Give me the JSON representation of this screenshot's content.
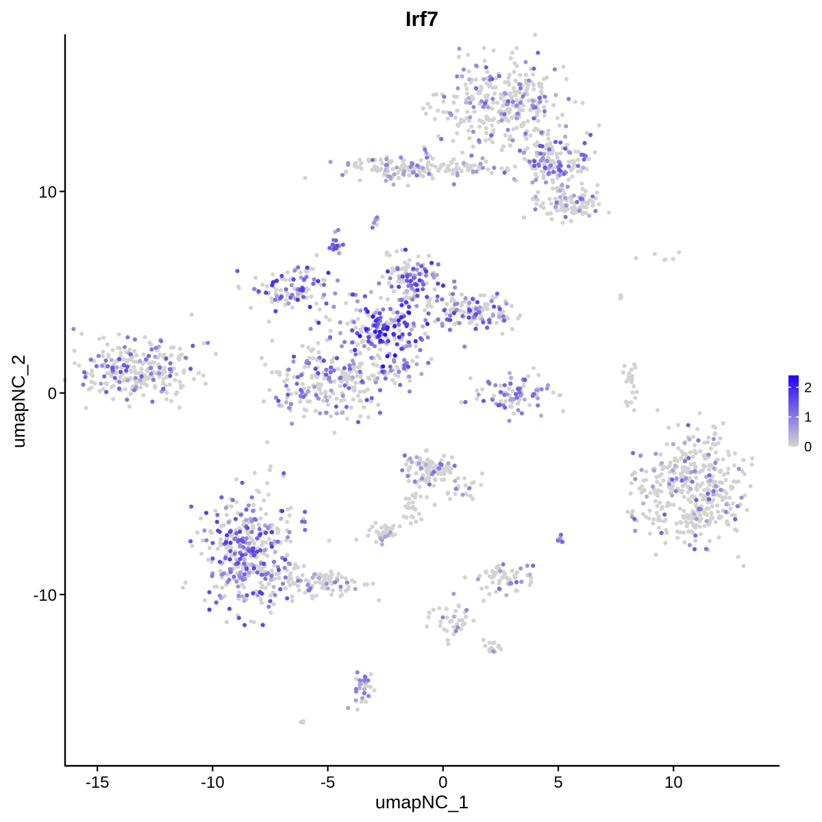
{
  "chart_data": {
    "type": "scatter",
    "title": "Irf7",
    "xlabel": "umapNC_1",
    "ylabel": "umapNC_2",
    "xlim": [
      -16.4,
      14.6
    ],
    "ylim": [
      -18.5,
      17.8
    ],
    "x_ticks": [
      {
        "value": -15,
        "label": "-15"
      },
      {
        "value": -10,
        "label": "-10"
      },
      {
        "value": -5,
        "label": "-5"
      },
      {
        "value": 0,
        "label": "0"
      },
      {
        "value": 5,
        "label": "5"
      },
      {
        "value": 10,
        "label": "10"
      }
    ],
    "y_ticks": [
      {
        "value": -10,
        "label": "-10"
      },
      {
        "value": 0,
        "label": "0"
      },
      {
        "value": 10,
        "label": "10"
      }
    ],
    "color_scale": {
      "low": "#d3d3d3",
      "high": "#2000ff",
      "min": 0,
      "max": 2.4,
      "ticks": [
        {
          "value": 0,
          "label": "0"
        },
        {
          "value": 1,
          "label": "1"
        },
        {
          "value": 2,
          "label": "2"
        }
      ]
    },
    "grid": false,
    "legend_position": "right",
    "clusters": [
      {
        "cx": 2.6,
        "cy": 14.2,
        "sx": 1.4,
        "sy": 1.2,
        "n": 320,
        "expr_frac": 0.22,
        "expr_max": 1.4
      },
      {
        "cx": 4.9,
        "cy": 11.4,
        "sx": 0.75,
        "sy": 0.55,
        "n": 130,
        "expr_frac": 0.35,
        "expr_max": 1.5
      },
      {
        "cx": 5.3,
        "cy": 9.4,
        "sx": 0.7,
        "sy": 0.45,
        "n": 110,
        "expr_frac": 0.15,
        "expr_max": 1.2
      },
      {
        "cx": -2.0,
        "cy": 11.2,
        "sx": 1.2,
        "sy": 0.35,
        "n": 100,
        "expr_frac": 0.2,
        "expr_max": 1.2
      },
      {
        "cx": 0.4,
        "cy": 11.2,
        "sx": 1.0,
        "sy": 0.25,
        "n": 60,
        "expr_frac": 0.15,
        "expr_max": 1.0
      },
      {
        "cx": -2.9,
        "cy": 8.5,
        "sx": 0.1,
        "sy": 0.2,
        "n": 8,
        "expr_frac": 0.6,
        "expr_max": 1.3
      },
      {
        "cx": -4.6,
        "cy": 7.4,
        "sx": 0.15,
        "sy": 0.25,
        "n": 18,
        "expr_frac": 0.8,
        "expr_max": 1.6
      },
      {
        "cx": -6.5,
        "cy": 5.2,
        "sx": 1.0,
        "sy": 0.55,
        "n": 110,
        "expr_frac": 0.4,
        "expr_max": 1.9
      },
      {
        "cx": -2.7,
        "cy": 3.2,
        "sx": 1.1,
        "sy": 0.9,
        "n": 200,
        "expr_frac": 0.55,
        "expr_max": 2.3
      },
      {
        "cx": -1.3,
        "cy": 5.6,
        "sx": 0.55,
        "sy": 0.65,
        "n": 110,
        "expr_frac": 0.55,
        "expr_max": 1.9
      },
      {
        "cx": 1.4,
        "cy": 4.1,
        "sx": 0.9,
        "sy": 0.45,
        "n": 130,
        "expr_frac": 0.45,
        "expr_max": 1.7
      },
      {
        "cx": -4.8,
        "cy": 0.6,
        "sx": 1.3,
        "sy": 0.9,
        "n": 250,
        "expr_frac": 0.3,
        "expr_max": 1.6
      },
      {
        "cx": -1.8,
        "cy": 1.3,
        "sx": 0.5,
        "sy": 0.3,
        "n": 25,
        "expr_frac": 0.6,
        "expr_max": 1.6
      },
      {
        "cx": -13.2,
        "cy": 1.1,
        "sx": 1.2,
        "sy": 0.65,
        "n": 260,
        "expr_frac": 0.25,
        "expr_max": 1.5
      },
      {
        "cx": 3.0,
        "cy": 0.0,
        "sx": 0.8,
        "sy": 0.5,
        "n": 90,
        "expr_frac": 0.5,
        "expr_max": 1.5
      },
      {
        "cx": 8.1,
        "cy": 0.4,
        "sx": 0.18,
        "sy": 0.6,
        "n": 25,
        "expr_frac": 0.05,
        "expr_max": 0.8
      },
      {
        "cx": 10.8,
        "cy": -4.8,
        "sx": 1.2,
        "sy": 1.3,
        "n": 420,
        "expr_frac": 0.18,
        "expr_max": 1.4
      },
      {
        "cx": -0.6,
        "cy": -3.8,
        "sx": 0.5,
        "sy": 0.5,
        "n": 100,
        "expr_frac": 0.15,
        "expr_max": 1.2
      },
      {
        "cx": 0.8,
        "cy": -4.8,
        "sx": 0.45,
        "sy": 0.4,
        "n": 25,
        "expr_frac": 0.1,
        "expr_max": 1.0
      },
      {
        "cx": -1.3,
        "cy": -5.6,
        "sx": 0.3,
        "sy": 0.8,
        "n": 25,
        "expr_frac": 0.05,
        "expr_max": 0.8
      },
      {
        "cx": -2.6,
        "cy": -6.9,
        "sx": 0.35,
        "sy": 0.25,
        "n": 40,
        "expr_frac": 0.1,
        "expr_max": 1.0
      },
      {
        "cx": -8.5,
        "cy": -7.8,
        "sx": 1.0,
        "sy": 1.4,
        "n": 380,
        "expr_frac": 0.45,
        "expr_max": 1.8
      },
      {
        "cx": -5.5,
        "cy": -9.4,
        "sx": 1.2,
        "sy": 0.35,
        "n": 100,
        "expr_frac": 0.15,
        "expr_max": 1.2
      },
      {
        "cx": 2.5,
        "cy": -9.2,
        "sx": 0.6,
        "sy": 0.45,
        "n": 60,
        "expr_frac": 0.3,
        "expr_max": 1.3
      },
      {
        "cx": 5.1,
        "cy": -7.2,
        "sx": 0.08,
        "sy": 0.15,
        "n": 8,
        "expr_frac": 0.5,
        "expr_max": 1.3
      },
      {
        "cx": 0.4,
        "cy": -11.3,
        "sx": 0.5,
        "sy": 0.6,
        "n": 35,
        "expr_frac": 0.1,
        "expr_max": 1.0
      },
      {
        "cx": 2.2,
        "cy": -12.6,
        "sx": 0.3,
        "sy": 0.15,
        "n": 18,
        "expr_frac": 0.1,
        "expr_max": 1.0
      },
      {
        "cx": -3.5,
        "cy": -14.6,
        "sx": 0.2,
        "sy": 0.6,
        "n": 30,
        "expr_frac": 0.6,
        "expr_max": 1.2
      },
      {
        "cx": 9.5,
        "cy": 6.8,
        "sx": 0.7,
        "sy": 0.1,
        "n": 6,
        "expr_frac": 0,
        "expr_max": 0.5
      },
      {
        "cx": 7.7,
        "cy": 4.8,
        "sx": 0.05,
        "sy": 0.1,
        "n": 3,
        "expr_frac": 0,
        "expr_max": 0.5
      },
      {
        "cx": -6.1,
        "cy": -16.3,
        "sx": 0.05,
        "sy": 0.05,
        "n": 3,
        "expr_frac": 0.3,
        "expr_max": 0.8
      }
    ]
  }
}
